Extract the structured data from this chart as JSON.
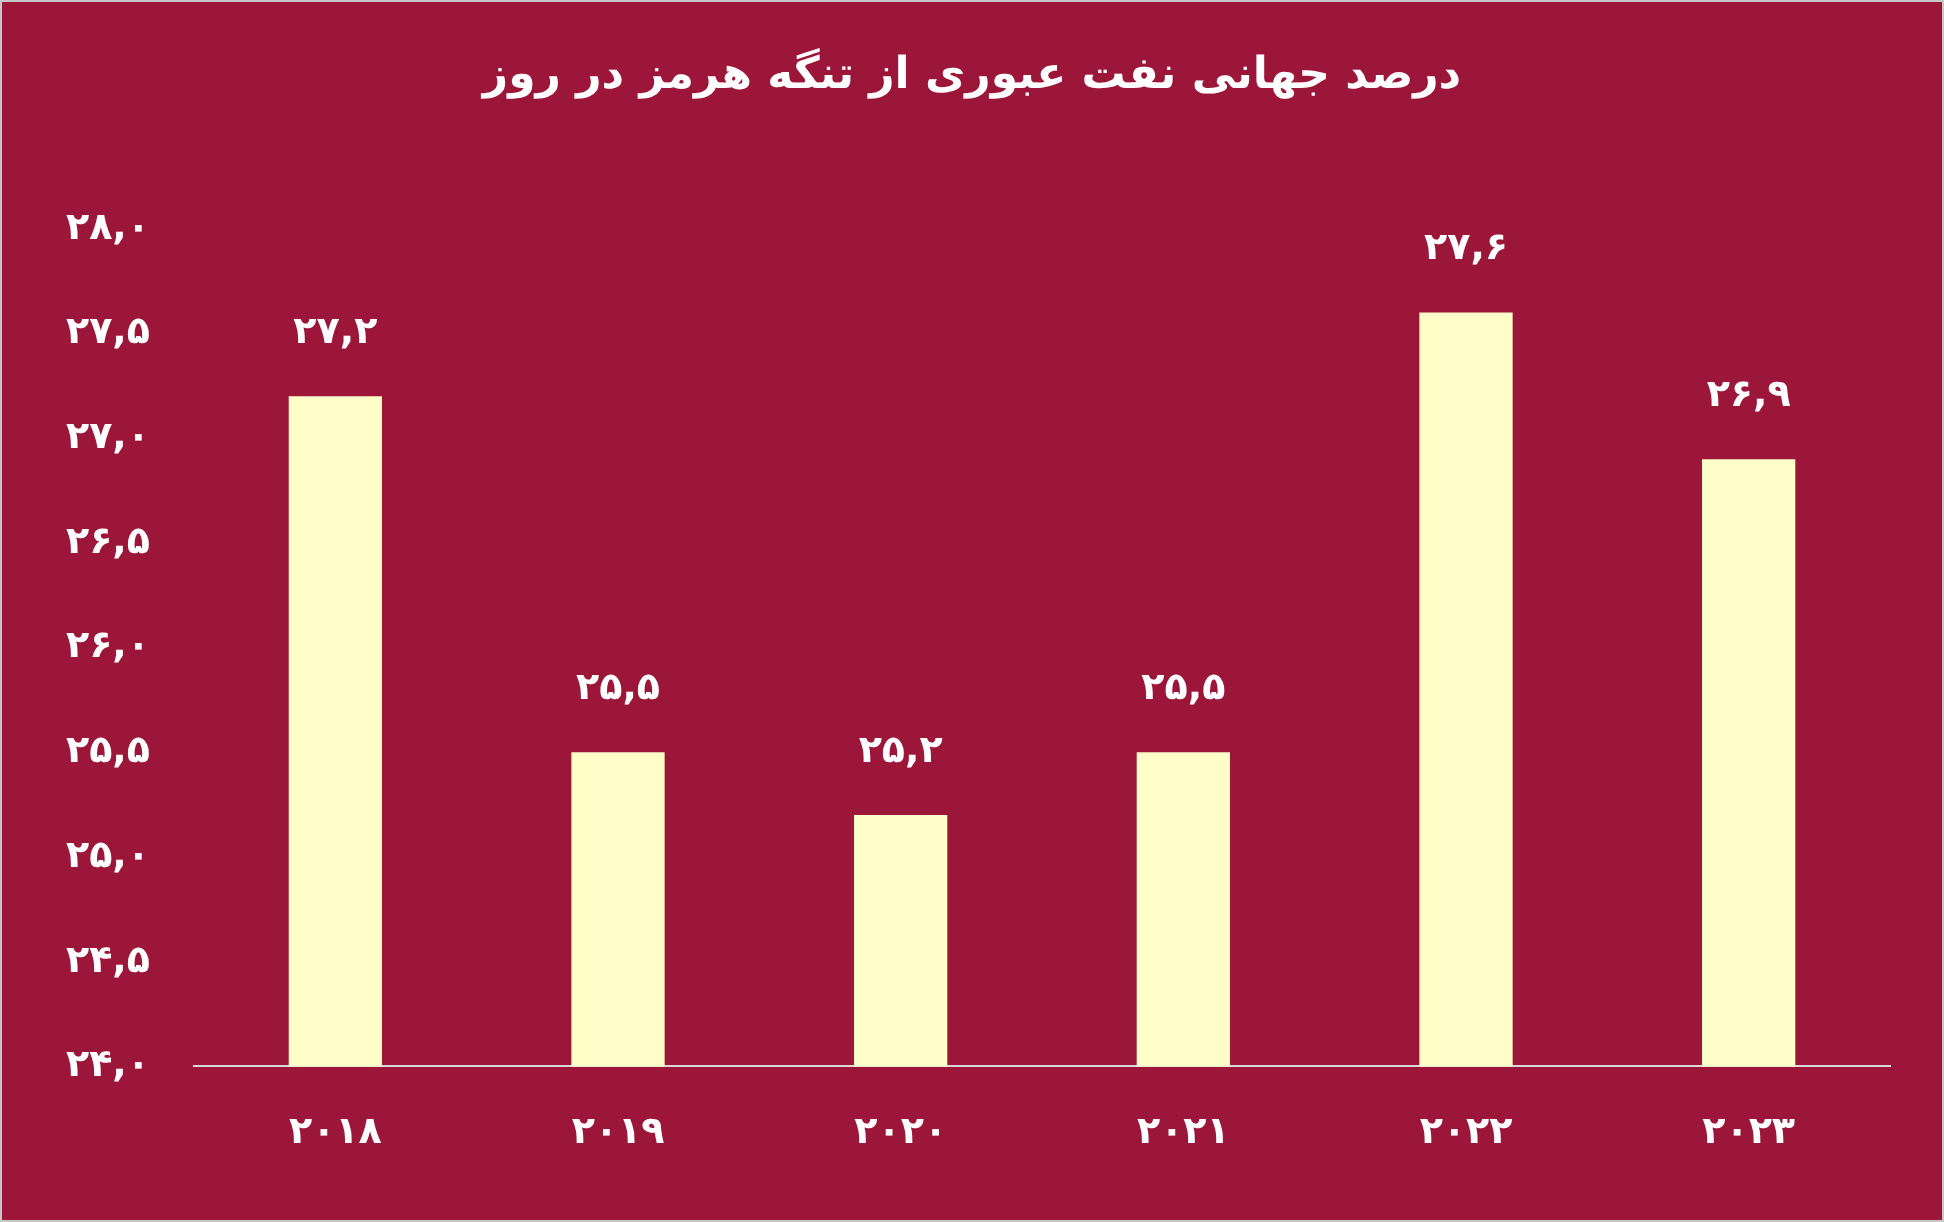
{
  "chart_data": {
    "type": "bar",
    "title": "درصد جهانی نفت عبوری از تنگه هرمز در روز",
    "categories": [
      "۲۰۱۸",
      "۲۰۱۹",
      "۲۰۲۰",
      "۲۰۲۱",
      "۲۰۲۲",
      "۲۰۲۳"
    ],
    "values": [
      27.2,
      25.5,
      25.2,
      25.5,
      27.6,
      26.9
    ],
    "value_labels": [
      "۲۷,۲",
      "۲۵,۵",
      "۲۵,۲",
      "۲۵,۵",
      "۲۷,۶",
      "۲۶,۹"
    ],
    "color": "#fffdc8",
    "ylim": [
      24,
      28
    ],
    "yticks": [
      {
        "value": 24,
        "label": "۲۴,۰"
      },
      {
        "value": 24.5,
        "label": "۲۴,۵"
      },
      {
        "value": 25,
        "label": "۲۵,۰"
      },
      {
        "value": 25.5,
        "label": "۲۵,۵"
      },
      {
        "value": 26,
        "label": "۲۶,۰"
      },
      {
        "value": 26.5,
        "label": "۲۶,۵"
      },
      {
        "value": 27,
        "label": "۲۷,۰"
      },
      {
        "value": 27.5,
        "label": "۲۷,۵"
      },
      {
        "value": 28,
        "label": "۲۸,۰"
      }
    ],
    "grid": false,
    "legend": false
  }
}
